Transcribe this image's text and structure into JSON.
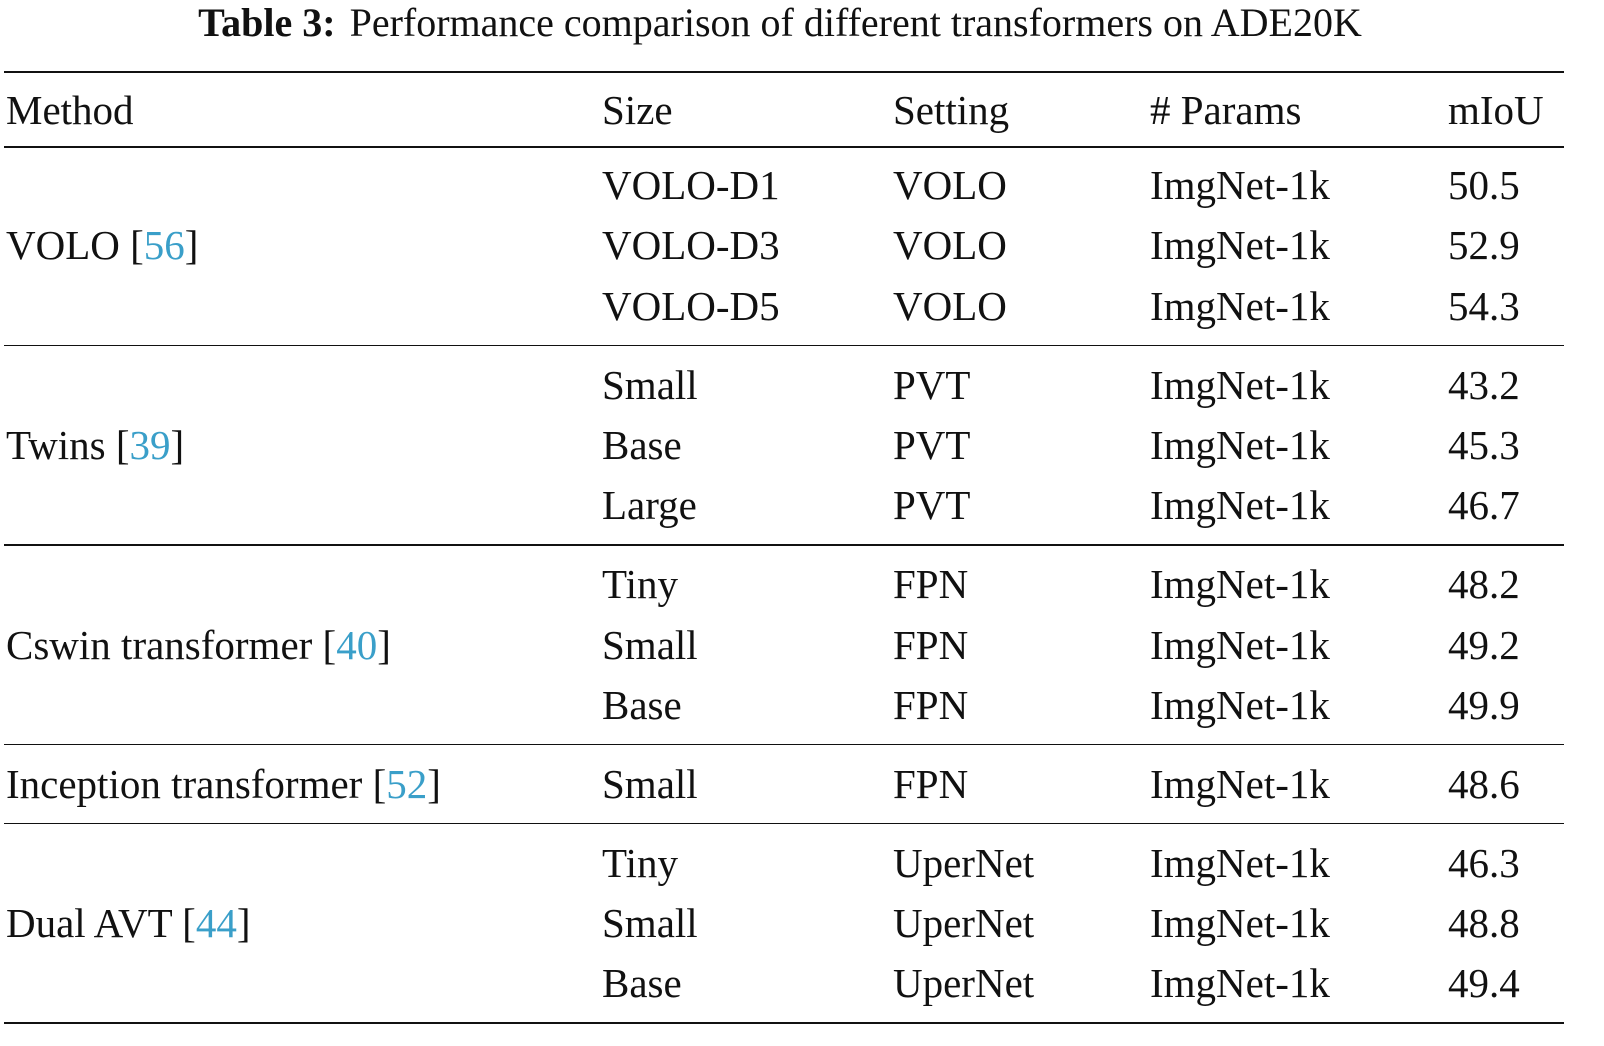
{
  "caption": {
    "label": "Table 3:",
    "text": "Performance comparison of different transformers on ADE20K"
  },
  "table": {
    "header": [
      "Method",
      "Size",
      "Setting",
      "# Params",
      "mIoU"
    ],
    "groups": [
      {
        "method": [
          "VOLO [",
          "56",
          "]"
        ],
        "rows": [
          [
            "VOLO-D1",
            "VOLO",
            "ImgNet-1k",
            "50.5"
          ],
          [
            "VOLO-D3",
            "VOLO",
            "ImgNet-1k",
            "52.9"
          ],
          [
            "VOLO-D5",
            "VOLO",
            "ImgNet-1k",
            "54.3"
          ]
        ]
      },
      {
        "method": [
          "Twins [",
          "39",
          "]"
        ],
        "rows": [
          [
            "Small",
            "PVT",
            "ImgNet-1k",
            "43.2"
          ],
          [
            "Base",
            "PVT",
            "ImgNet-1k",
            "45.3"
          ],
          [
            "Large",
            "PVT",
            "ImgNet-1k",
            "46.7"
          ]
        ]
      },
      {
        "method": [
          "Cswin transformer [",
          "40",
          "]"
        ],
        "rows": [
          [
            "Tiny",
            "FPN",
            "ImgNet-1k",
            "48.2"
          ],
          [
            "Small",
            "FPN",
            "ImgNet-1k",
            "49.2"
          ],
          [
            "Base",
            "FPN",
            "ImgNet-1k",
            "49.9"
          ]
        ]
      },
      {
        "method": [
          "Inception transformer [",
          "52",
          "]"
        ],
        "rows": [
          [
            "Small",
            "FPN",
            "ImgNet-1k",
            "48.6"
          ]
        ]
      },
      {
        "method": [
          "Dual AVT [",
          "44",
          "]"
        ],
        "rows": [
          [
            "Tiny",
            "UperNet",
            "ImgNet-1k",
            "46.3"
          ],
          [
            "Small",
            "UperNet",
            "ImgNet-1k",
            "48.8"
          ],
          [
            "Base",
            "UperNet",
            "ImgNet-1k",
            "49.4"
          ]
        ]
      }
    ]
  }
}
